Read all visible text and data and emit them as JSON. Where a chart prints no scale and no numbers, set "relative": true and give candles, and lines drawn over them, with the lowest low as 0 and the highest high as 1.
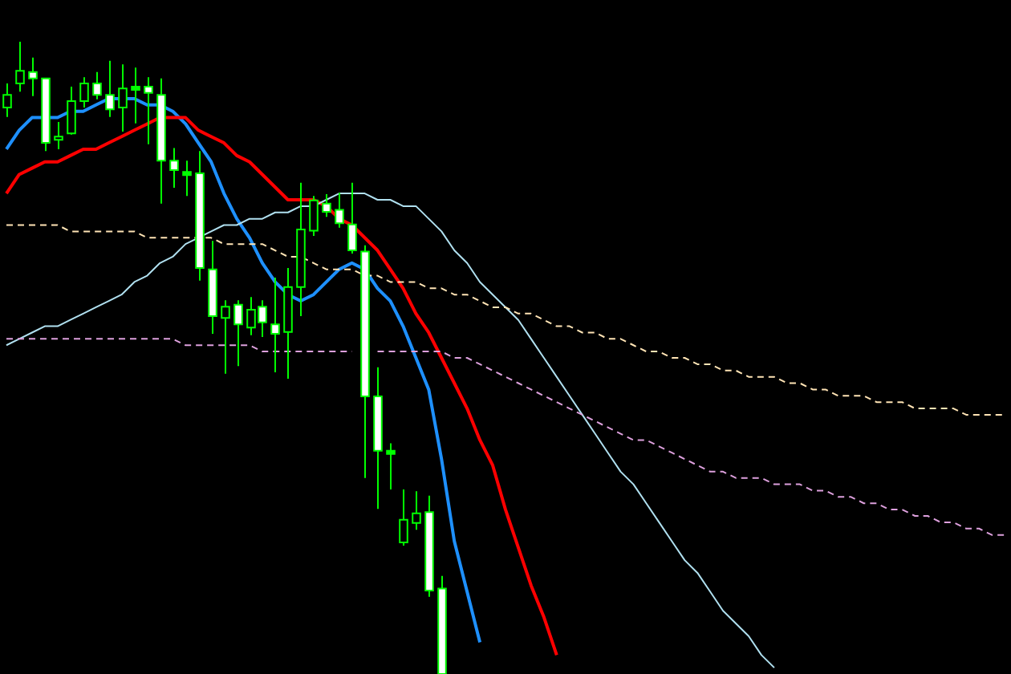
{
  "chart_data": {
    "type": "candlestick",
    "relative": true,
    "color": "#00ff00",
    "categories": [
      null,
      null,
      null,
      null,
      null,
      null,
      null,
      null,
      null,
      null,
      null,
      null,
      null,
      null,
      null,
      null,
      null,
      null,
      null,
      null,
      null,
      null,
      null,
      null,
      null,
      null,
      null,
      null,
      null,
      null,
      null,
      null,
      null,
      null,
      null,
      null,
      null,
      null,
      null,
      null,
      null,
      null,
      null,
      null,
      null,
      null,
      null,
      null,
      null,
      null,
      null,
      null,
      null,
      null,
      null,
      null,
      null,
      null,
      null,
      null,
      null,
      null,
      null,
      null,
      null,
      null,
      null,
      null,
      null,
      null,
      null,
      null,
      null,
      null,
      null,
      null,
      null,
      null,
      null
    ],
    "ohlc": [
      [
        0.896,
        0.934,
        0.881,
        0.916
      ],
      [
        0.934,
        1.0,
        0.921,
        0.954
      ],
      [
        0.952,
        0.975,
        0.914,
        0.942
      ],
      [
        0.942,
        0.942,
        0.827,
        0.84
      ],
      [
        0.845,
        0.873,
        0.83,
        0.85
      ],
      [
        0.855,
        0.929,
        0.853,
        0.906
      ],
      [
        0.906,
        0.944,
        0.896,
        0.934
      ],
      [
        0.934,
        0.952,
        0.909,
        0.916
      ],
      [
        0.916,
        0.97,
        0.881,
        0.893
      ],
      [
        0.896,
        0.964,
        0.858,
        0.926
      ],
      [
        0.926,
        0.959,
        0.871,
        0.929
      ],
      [
        0.929,
        0.944,
        0.838,
        0.919
      ],
      [
        0.916,
        0.942,
        0.744,
        0.812
      ],
      [
        0.812,
        0.832,
        0.769,
        0.797
      ],
      [
        0.794,
        0.812,
        0.756,
        0.792
      ],
      [
        0.792,
        0.827,
        0.622,
        0.642
      ],
      [
        0.64,
        0.685,
        0.538,
        0.566
      ],
      [
        0.563,
        0.591,
        0.475,
        0.581
      ],
      [
        0.584,
        0.591,
        0.487,
        0.553
      ],
      [
        0.548,
        0.596,
        0.536,
        0.576
      ],
      [
        0.581,
        0.591,
        0.533,
        0.556
      ],
      [
        0.553,
        0.627,
        0.477,
        0.538
      ],
      [
        0.541,
        0.642,
        0.467,
        0.612
      ],
      [
        0.612,
        0.777,
        0.566,
        0.703
      ],
      [
        0.701,
        0.756,
        0.693,
        0.749
      ],
      [
        0.744,
        0.759,
        0.723,
        0.731
      ],
      [
        0.734,
        0.761,
        0.706,
        0.713
      ],
      [
        0.711,
        0.777,
        0.665,
        0.67
      ],
      [
        0.668,
        0.678,
        0.31,
        0.439
      ],
      [
        0.439,
        0.485,
        0.261,
        0.353
      ],
      [
        0.353,
        0.365,
        0.292,
        0.35
      ],
      [
        0.208,
        0.292,
        0.203,
        0.244
      ],
      [
        0.239,
        0.289,
        0.228,
        0.254
      ],
      [
        0.256,
        0.282,
        0.122,
        0.132
      ],
      [
        0.135,
        0.155,
        0.0,
        0.0
      ],
      null,
      null,
      null,
      null,
      null,
      null,
      null,
      null,
      null,
      null,
      null,
      null,
      null,
      null,
      null,
      null,
      null,
      null,
      null,
      null,
      null,
      null,
      null,
      null,
      null,
      null,
      null,
      null,
      null,
      null,
      null,
      null,
      null,
      null,
      null,
      null,
      null,
      null,
      null,
      null,
      null,
      null,
      null,
      null
    ],
    "colors": [
      "#000000",
      "#000000",
      "#ffffff",
      "#ffffff",
      "#000000",
      "#000000",
      "#000000",
      "#ffffff",
      "#ffffff",
      "#000000",
      "#00ff00",
      "#ffffff",
      "#ffffff",
      "#ffffff",
      "#00ff00",
      "#ffffff",
      "#ffffff",
      "#000000",
      "#ffffff",
      "#000000",
      "#ffffff",
      "#ffffff",
      "#000000",
      "#000000",
      "#000000",
      "#ffffff",
      "#ffffff",
      "#ffffff",
      "#ffffff",
      "#ffffff",
      "#00ff00",
      "#000000",
      "#000000",
      "#ffffff",
      "#ffffff",
      null,
      null,
      null,
      null,
      null,
      null,
      null,
      null,
      null,
      null,
      null,
      null,
      null,
      null,
      null,
      null,
      null,
      null,
      null,
      null,
      null,
      null,
      null,
      null,
      null,
      null,
      null,
      null,
      null,
      null,
      null,
      null,
      null,
      null,
      null,
      null,
      null,
      null,
      null,
      null,
      null,
      null,
      null,
      null
    ],
    "series": [
      {
        "type": "line",
        "color": "#ffe4b5",
        "line_style": "dashed",
        "values": [
          0.71,
          0.71,
          0.71,
          0.71,
          0.71,
          0.7,
          0.7,
          0.7,
          0.7,
          0.7,
          0.7,
          0.69,
          0.69,
          0.69,
          0.69,
          0.69,
          0.69,
          0.68,
          0.68,
          0.68,
          0.68,
          0.67,
          0.66,
          0.66,
          0.65,
          0.64,
          0.64,
          0.64,
          0.63,
          0.63,
          0.62,
          0.62,
          0.62,
          0.61,
          0.61,
          0.6,
          0.6,
          0.59,
          0.58,
          0.58,
          0.57,
          0.57,
          0.56,
          0.55,
          0.55,
          0.54,
          0.54,
          0.53,
          0.53,
          0.52,
          0.51,
          0.51,
          0.5,
          0.5,
          0.49,
          0.49,
          0.48,
          0.48,
          0.47,
          0.47,
          0.47,
          0.46,
          0.46,
          0.45,
          0.45,
          0.44,
          0.44,
          0.44,
          0.43,
          0.43,
          0.43,
          0.42,
          0.42,
          0.42,
          0.42,
          0.41,
          0.41,
          0.41,
          0.41
        ]
      },
      {
        "type": "line",
        "color": "#dda0dd",
        "line_style": "dashed",
        "values": [
          0.53,
          0.53,
          0.53,
          0.53,
          0.53,
          0.53,
          0.53,
          0.53,
          0.53,
          0.53,
          0.53,
          0.53,
          0.53,
          0.53,
          0.52,
          0.52,
          0.52,
          0.52,
          0.52,
          0.52,
          0.51,
          0.51,
          0.51,
          0.51,
          0.51,
          0.51,
          0.51,
          0.51,
          null,
          0.51,
          0.51,
          0.51,
          0.51,
          0.51,
          0.51,
          0.5,
          0.5,
          0.49,
          0.48,
          0.47,
          0.46,
          0.45,
          0.44,
          0.43,
          0.42,
          0.41,
          0.4,
          0.39,
          0.38,
          0.37,
          0.37,
          0.36,
          0.35,
          0.34,
          0.33,
          0.32,
          0.32,
          0.31,
          0.31,
          0.31,
          0.3,
          0.3,
          0.3,
          0.29,
          0.29,
          0.28,
          0.28,
          0.27,
          0.27,
          0.26,
          0.26,
          0.25,
          0.25,
          0.24,
          0.24,
          0.23,
          0.23,
          0.22,
          0.22
        ]
      },
      {
        "type": "line",
        "color": "#b0e0f0",
        "line_style": "solid",
        "values": [
          0.52,
          0.53,
          0.54,
          0.55,
          0.55,
          0.56,
          0.57,
          0.58,
          0.59,
          0.6,
          0.62,
          0.63,
          0.65,
          0.66,
          0.68,
          0.69,
          0.7,
          0.71,
          0.71,
          0.72,
          0.72,
          0.73,
          0.73,
          0.74,
          0.74,
          0.75,
          0.76,
          0.76,
          0.76,
          0.75,
          0.75,
          0.74,
          0.74,
          0.72,
          0.7,
          0.67,
          0.65,
          0.62,
          0.6,
          0.58,
          0.56,
          0.53,
          0.5,
          0.47,
          0.44,
          0.41,
          0.38,
          0.35,
          0.32,
          0.3,
          0.27,
          0.24,
          0.21,
          0.18,
          0.16,
          0.13,
          0.1,
          0.08,
          0.06,
          0.03,
          0.01,
          null,
          null,
          null,
          null,
          null,
          null,
          null,
          null,
          null,
          null,
          null,
          null,
          null,
          null,
          null,
          null,
          null,
          null
        ]
      },
      {
        "type": "line",
        "color": "#ff0000",
        "line_style": "solid",
        "values": [
          0.76,
          0.79,
          0.8,
          0.81,
          0.81,
          0.82,
          0.83,
          0.83,
          0.84,
          0.85,
          0.86,
          0.87,
          0.88,
          0.88,
          0.88,
          0.86,
          0.85,
          0.84,
          0.82,
          0.81,
          0.79,
          0.77,
          0.75,
          0.75,
          0.75,
          0.74,
          0.72,
          0.71,
          0.69,
          0.67,
          0.64,
          0.61,
          0.57,
          0.54,
          0.5,
          0.46,
          0.42,
          0.37,
          0.33,
          0.26,
          0.2,
          0.14,
          0.09,
          0.03,
          null,
          null,
          null,
          null,
          null,
          null,
          null,
          null,
          null,
          null,
          null,
          null,
          null,
          null,
          null,
          null,
          null,
          null,
          null,
          null,
          null,
          null,
          null,
          null,
          null,
          null,
          null,
          null,
          null,
          null,
          null,
          null,
          null,
          null,
          null
        ]
      },
      {
        "type": "line",
        "color": "#1e90ff",
        "line_style": "solid",
        "values": [
          0.83,
          0.86,
          0.88,
          0.88,
          0.88,
          0.89,
          0.89,
          0.9,
          0.91,
          0.91,
          0.91,
          0.9,
          0.9,
          0.89,
          0.87,
          0.84,
          0.81,
          0.76,
          0.72,
          0.69,
          0.65,
          0.62,
          0.6,
          0.59,
          0.6,
          0.62,
          0.64,
          0.65,
          0.64,
          0.61,
          0.59,
          0.55,
          0.5,
          0.45,
          0.34,
          0.21,
          0.13,
          0.05,
          null,
          null,
          null,
          null,
          null,
          null,
          null,
          null,
          null,
          null,
          null,
          null,
          null,
          null,
          null,
          null,
          null,
          null,
          null,
          null,
          null,
          null,
          null,
          null,
          null,
          null,
          null,
          null,
          null,
          null,
          null,
          null,
          null,
          null,
          null,
          null,
          null,
          null,
          null,
          null,
          null
        ]
      }
    ]
  }
}
